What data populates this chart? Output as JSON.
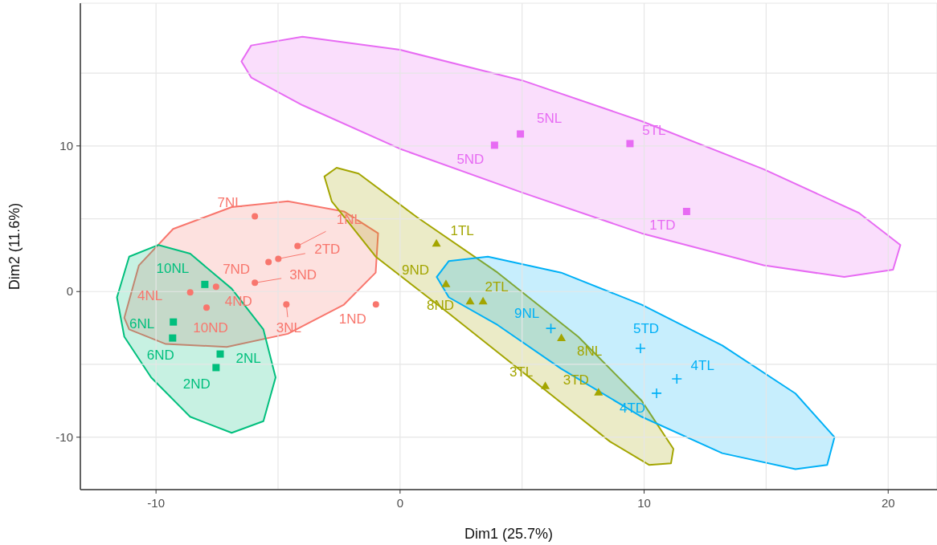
{
  "chart_data": {
    "type": "scatter",
    "xlabel": "Dim1 (25.7%)",
    "ylabel": "Dim2 (11.6%)",
    "xlim": [
      -13.1,
      22
    ],
    "ylim": [
      -13.6,
      19.8
    ],
    "xticks": [
      -10,
      {
        "value": -5,
        "label": null
      },
      0,
      {
        "value": 5,
        "label": null
      },
      10,
      {
        "value": 15,
        "label": null
      },
      20
    ],
    "yticks": [
      -10,
      {
        "value": -5,
        "label": null
      },
      0,
      {
        "value": 5,
        "label": null
      },
      10,
      {
        "value": 15,
        "label": null
      }
    ],
    "grid": true,
    "legend": false,
    "series": [
      {
        "type": "area",
        "color": "#f8766d",
        "x": [
          -11.3,
          -10.7,
          -9.3,
          -6.9,
          -4.6,
          -2.3,
          -0.9,
          -1.0,
          -2.3,
          -4.6,
          -7.1,
          -9.6,
          -11.1
        ],
        "values": [
          -1.8,
          1.8,
          4.3,
          5.8,
          6.2,
          5.5,
          4.0,
          1.3,
          -0.9,
          -2.9,
          -3.8,
          -3.6,
          -2.6
        ]
      },
      {
        "type": "area",
        "color": "#a3a500",
        "x": [
          -3.1,
          -2.6,
          -1.7,
          0.7,
          4.0,
          7.3,
          9.9,
          11.2,
          11.1,
          10.2,
          8.6,
          5.3,
          2.0,
          -1.0,
          -2.8
        ],
        "values": [
          7.9,
          8.5,
          8.1,
          5.1,
          1.3,
          -3.1,
          -7.5,
          -10.8,
          -11.8,
          -11.9,
          -10.3,
          -5.9,
          -1.5,
          2.4,
          6.2
        ]
      },
      {
        "type": "area",
        "color": "#00bf7d",
        "x": [
          -11.6,
          -11.1,
          -9.9,
          -8.6,
          -6.9,
          -5.6,
          -5.1,
          -5.6,
          -6.9,
          -8.6,
          -10.2,
          -11.3
        ],
        "values": [
          -0.4,
          2.4,
          3.2,
          2.6,
          0.2,
          -2.6,
          -5.9,
          -8.9,
          -9.7,
          -8.6,
          -5.9,
          -3.1
        ]
      },
      {
        "type": "area",
        "color": "#00b0f6",
        "x": [
          1.5,
          2.0,
          3.6,
          6.6,
          9.9,
          13.2,
          16.2,
          17.8,
          17.5,
          16.2,
          13.2,
          9.9,
          6.6,
          4.0,
          2.0
        ],
        "values": [
          1.0,
          2.1,
          2.4,
          1.3,
          -0.9,
          -3.7,
          -7.0,
          -10.0,
          -11.9,
          -12.2,
          -11.1,
          -8.6,
          -5.3,
          -2.3,
          -0.4
        ]
      },
      {
        "type": "area",
        "color": "#e76bf3",
        "x": [
          -6.5,
          -6.1,
          -4.0,
          0,
          5.0,
          9.9,
          14.9,
          18.8,
          20.5,
          20.2,
          18.2,
          14.9,
          9.9,
          5.0,
          0,
          -4.0,
          -6.1
        ],
        "values": [
          15.8,
          16.9,
          17.5,
          16.6,
          14.5,
          11.7,
          8.4,
          5.4,
          3.2,
          1.5,
          1.0,
          1.8,
          4.0,
          6.8,
          9.8,
          12.8,
          14.7
        ]
      },
      {
        "type": "scatter",
        "marker": "circle",
        "color": "#f8766d",
        "x": [
          -5.95,
          -4.2,
          -4.99,
          -5.39,
          -5.95,
          -8.6,
          -7.54,
          -7.93,
          -4.66,
          -0.99
        ],
        "values": [
          5.16,
          3.13,
          2.25,
          2.03,
          0.6,
          -0.05,
          0.33,
          -1.1,
          -0.88,
          -0.88
        ]
      },
      {
        "type": "scatter",
        "marker": "square",
        "color": "#00bf7d",
        "x": [
          -8.0,
          -9.29,
          -9.32,
          -7.37,
          -7.54
        ],
        "values": [
          0.49,
          -2.09,
          -3.19,
          -4.29,
          -5.22
        ]
      },
      {
        "type": "scatter",
        "marker": "triangle",
        "color": "#a3a500",
        "x": [
          1.49,
          1.88,
          2.87,
          3.4,
          6.61,
          5.95,
          8.13
        ],
        "values": [
          3.3,
          0.52,
          -0.66,
          -0.66,
          -3.19,
          -6.48,
          -6.92
        ]
      },
      {
        "type": "scatter",
        "marker": "cross",
        "color": "#00b0f6",
        "x": [
          6.18,
          9.85,
          11.34,
          10.51
        ],
        "values": [
          -2.53,
          -3.9,
          -5.99,
          -6.98
        ]
      },
      {
        "type": "scatter",
        "marker": "square",
        "color": "#e76bf3",
        "x": [
          4.93,
          3.87,
          9.42,
          11.74
        ],
        "values": [
          10.82,
          10.05,
          10.16,
          5.5
        ]
      }
    ],
    "annotations": [
      {
        "text": "7NL",
        "x": -5.95,
        "y": 5.16
      },
      {
        "text": "1NL",
        "x": -4.2,
        "y": 3.13
      },
      {
        "text": "2TD",
        "x": -4.99,
        "y": 2.25
      },
      {
        "text": "7ND",
        "x": -5.39,
        "y": 2.03
      },
      {
        "text": "3ND",
        "x": -5.95,
        "y": 0.6
      },
      {
        "text": "4NL",
        "x": -8.6,
        "y": -0.05
      },
      {
        "text": "4ND",
        "x": -7.54,
        "y": 0.33
      },
      {
        "text": "10ND",
        "x": -7.93,
        "y": -1.1
      },
      {
        "text": "3NL",
        "x": -4.66,
        "y": -0.88
      },
      {
        "text": "1ND",
        "x": -0.99,
        "y": -0.88
      },
      {
        "text": "10NL",
        "x": -8.0,
        "y": 0.49
      },
      {
        "text": "6NL",
        "x": -9.29,
        "y": -2.09
      },
      {
        "text": "6ND",
        "x": -9.32,
        "y": -3.19
      },
      {
        "text": "2NL",
        "x": -7.37,
        "y": -4.29
      },
      {
        "text": "2ND",
        "x": -7.54,
        "y": -5.22
      },
      {
        "text": "1TL",
        "x": 1.49,
        "y": 3.3
      },
      {
        "text": "9ND",
        "x": 1.88,
        "y": 0.52
      },
      {
        "text": "8ND",
        "x": 2.87,
        "y": -0.66
      },
      {
        "text": "2TL",
        "x": 3.4,
        "y": -0.66
      },
      {
        "text": "8NL",
        "x": 6.61,
        "y": -3.19
      },
      {
        "text": "3TL",
        "x": 5.95,
        "y": -6.48
      },
      {
        "text": "3TD",
        "x": 8.13,
        "y": -6.92
      },
      {
        "text": "9NL",
        "x": 6.18,
        "y": -2.53
      },
      {
        "text": "5TD",
        "x": 9.85,
        "y": -3.9
      },
      {
        "text": "4TL",
        "x": 11.34,
        "y": -5.99
      },
      {
        "text": "4TD",
        "x": 10.51,
        "y": -6.98
      },
      {
        "text": "5NL",
        "x": 4.93,
        "y": 10.82
      },
      {
        "text": "5ND",
        "x": 3.87,
        "y": 10.05
      },
      {
        "text": "5TL",
        "x": 9.42,
        "y": 10.16
      },
      {
        "text": "1TD",
        "x": 11.74,
        "y": 5.5
      }
    ]
  }
}
